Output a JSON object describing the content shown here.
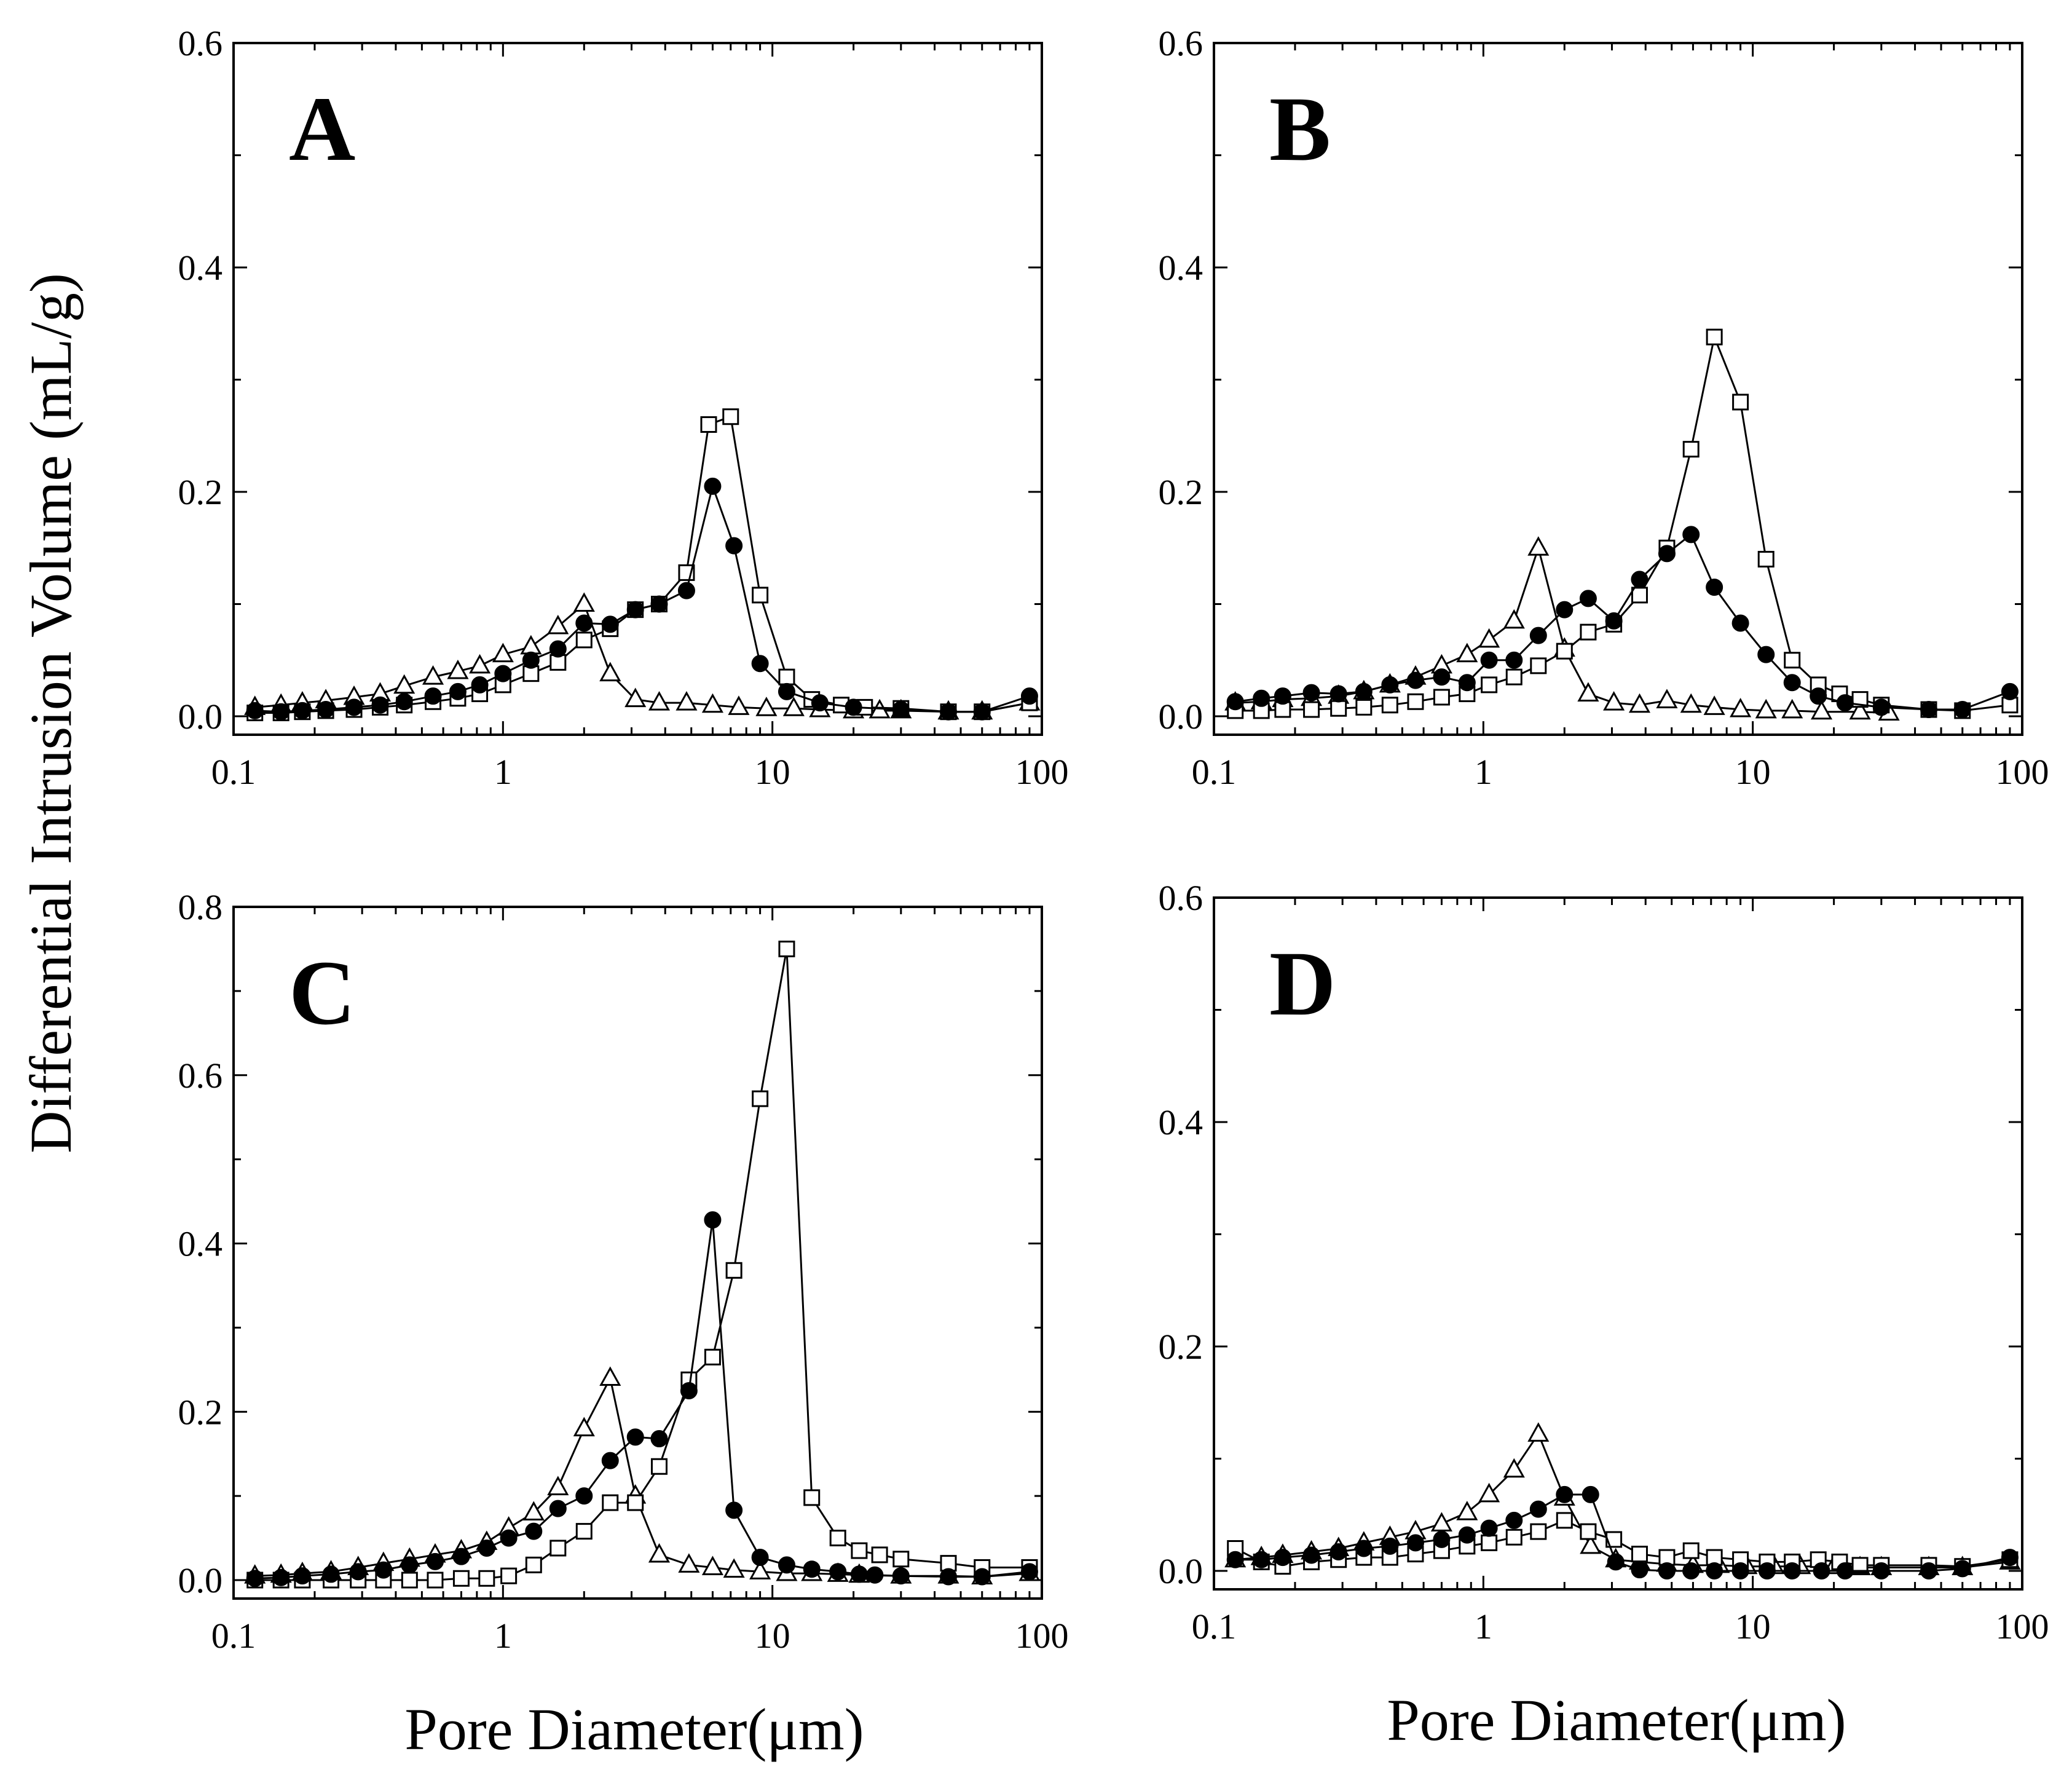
{
  "figure": {
    "ylabel": "Differential Intrusion Volume (mL/g)",
    "xlabel": "Pore Diameter(μm)"
  },
  "chart_data": [
    {
      "panel": "A",
      "type": "line",
      "xscale": "log",
      "xlim": [
        0.1,
        100
      ],
      "ylim": [
        0,
        0.6
      ],
      "xticks": [
        "0.1",
        "1",
        "10",
        "100"
      ],
      "yticks": [
        "0.0",
        "0.2",
        "0.4",
        "0.6"
      ],
      "series": [
        {
          "name": "filled circles",
          "marker": "circle-filled",
          "x": [
            0.12,
            0.15,
            0.18,
            0.22,
            0.28,
            0.35,
            0.43,
            0.55,
            0.68,
            0.82,
            1.0,
            1.27,
            1.6,
            2.0,
            2.5,
            3.1,
            3.8,
            4.8,
            6.0,
            7.2,
            9.0,
            11.3,
            15,
            20,
            30,
            45,
            60,
            90
          ],
          "y": [
            0.005,
            0.004,
            0.005,
            0.006,
            0.008,
            0.01,
            0.013,
            0.018,
            0.022,
            0.028,
            0.038,
            0.05,
            0.06,
            0.083,
            0.082,
            0.095,
            0.1,
            0.112,
            0.205,
            0.152,
            0.047,
            0.022,
            0.012,
            0.008,
            0.006,
            0.004,
            0.004,
            0.018
          ]
        },
        {
          "name": "open squares",
          "marker": "square-open",
          "x": [
            0.12,
            0.15,
            0.18,
            0.22,
            0.28,
            0.35,
            0.43,
            0.55,
            0.68,
            0.82,
            1.0,
            1.27,
            1.6,
            2.0,
            2.5,
            3.1,
            3.8,
            4.8,
            5.8,
            7.0,
            9.0,
            11.3,
            14,
            18,
            22,
            30,
            45,
            60,
            90
          ],
          "y": [
            0.003,
            0.003,
            0.004,
            0.005,
            0.006,
            0.008,
            0.01,
            0.013,
            0.016,
            0.02,
            0.028,
            0.038,
            0.048,
            0.068,
            0.078,
            0.095,
            0.1,
            0.128,
            0.26,
            0.267,
            0.108,
            0.035,
            0.015,
            0.01,
            0.008,
            0.007,
            0.004,
            0.004,
            0.012
          ]
        },
        {
          "name": "open triangles",
          "marker": "triangle-open",
          "x": [
            0.12,
            0.15,
            0.18,
            0.22,
            0.28,
            0.35,
            0.43,
            0.55,
            0.68,
            0.82,
            1.0,
            1.27,
            1.6,
            2.0,
            2.5,
            3.1,
            3.8,
            4.8,
            6.0,
            7.5,
            9.5,
            12,
            15,
            20,
            25,
            30,
            45,
            60,
            90
          ],
          "y": [
            0.008,
            0.01,
            0.012,
            0.014,
            0.017,
            0.02,
            0.027,
            0.035,
            0.04,
            0.045,
            0.055,
            0.062,
            0.08,
            0.1,
            0.038,
            0.015,
            0.012,
            0.012,
            0.01,
            0.008,
            0.007,
            0.007,
            0.006,
            0.005,
            0.005,
            0.005,
            0.004,
            0.004,
            0.012
          ]
        }
      ]
    },
    {
      "panel": "B",
      "type": "line",
      "xscale": "log",
      "xlim": [
        0.1,
        100
      ],
      "ylim": [
        0,
        0.6
      ],
      "xticks": [
        "0.1",
        "1",
        "10",
        "100"
      ],
      "yticks": [
        "0.0",
        "0.2",
        "0.4",
        "0.6"
      ],
      "series": [
        {
          "name": "filled circles",
          "marker": "circle-filled",
          "x": [
            0.12,
            0.15,
            0.18,
            0.23,
            0.29,
            0.36,
            0.45,
            0.56,
            0.7,
            0.87,
            1.05,
            1.3,
            1.6,
            2.0,
            2.45,
            3.05,
            3.8,
            4.8,
            5.9,
            7.2,
            9.0,
            11.2,
            14,
            17.5,
            22,
            30,
            45,
            60,
            90
          ],
          "y": [
            0.013,
            0.016,
            0.018,
            0.021,
            0.02,
            0.022,
            0.028,
            0.032,
            0.035,
            0.03,
            0.05,
            0.05,
            0.072,
            0.095,
            0.105,
            0.085,
            0.122,
            0.145,
            0.162,
            0.115,
            0.083,
            0.055,
            0.03,
            0.018,
            0.012,
            0.008,
            0.006,
            0.006,
            0.022
          ]
        },
        {
          "name": "open squares",
          "marker": "square-open",
          "x": [
            0.12,
            0.15,
            0.18,
            0.23,
            0.29,
            0.36,
            0.45,
            0.56,
            0.7,
            0.87,
            1.05,
            1.3,
            1.6,
            2.0,
            2.45,
            3.05,
            3.8,
            4.8,
            5.9,
            7.2,
            9.0,
            11.2,
            14,
            17.5,
            21,
            25,
            30,
            45,
            60,
            90
          ],
          "y": [
            0.005,
            0.005,
            0.006,
            0.006,
            0.007,
            0.008,
            0.01,
            0.013,
            0.017,
            0.02,
            0.028,
            0.035,
            0.045,
            0.058,
            0.075,
            0.082,
            0.108,
            0.15,
            0.238,
            0.338,
            0.28,
            0.14,
            0.05,
            0.028,
            0.02,
            0.015,
            0.01,
            0.006,
            0.005,
            0.01
          ]
        },
        {
          "name": "open triangles",
          "marker": "triangle-open",
          "x": [
            0.12,
            0.15,
            0.18,
            0.23,
            0.29,
            0.36,
            0.45,
            0.56,
            0.7,
            0.87,
            1.05,
            1.3,
            1.6,
            2.0,
            2.45,
            3.05,
            3.8,
            4.8,
            5.9,
            7.2,
            9.0,
            11.2,
            14,
            18,
            25,
            32
          ],
          "y": [
            0.012,
            0.013,
            0.015,
            0.016,
            0.018,
            0.022,
            0.028,
            0.035,
            0.045,
            0.055,
            0.068,
            0.085,
            0.15,
            0.06,
            0.02,
            0.012,
            0.01,
            0.014,
            0.01,
            0.008,
            0.006,
            0.005,
            0.005,
            0.004,
            0.004,
            0.003
          ]
        }
      ]
    },
    {
      "panel": "C",
      "type": "line",
      "xscale": "log",
      "xlim": [
        0.1,
        100
      ],
      "ylim": [
        0,
        0.8
      ],
      "xticks": [
        "0.1",
        "1",
        "10",
        "100"
      ],
      "yticks": [
        "0.0",
        "0.2",
        "0.4",
        "0.6",
        "0.8"
      ],
      "series": [
        {
          "name": "filled circles",
          "marker": "circle-filled",
          "x": [
            0.12,
            0.15,
            0.18,
            0.23,
            0.29,
            0.36,
            0.45,
            0.56,
            0.7,
            0.87,
            1.05,
            1.3,
            1.6,
            2.0,
            2.5,
            3.1,
            3.8,
            4.9,
            6.0,
            7.2,
            9.0,
            11.3,
            14,
            17.5,
            21,
            24,
            30,
            45,
            60,
            90
          ],
          "y": [
            0.002,
            0.003,
            0.005,
            0.007,
            0.01,
            0.012,
            0.018,
            0.022,
            0.028,
            0.038,
            0.05,
            0.058,
            0.085,
            0.1,
            0.142,
            0.17,
            0.168,
            0.225,
            0.428,
            0.083,
            0.027,
            0.018,
            0.013,
            0.01,
            0.007,
            0.006,
            0.005,
            0.004,
            0.004,
            0.01
          ]
        },
        {
          "name": "open squares",
          "marker": "square-open",
          "x": [
            0.12,
            0.15,
            0.18,
            0.23,
            0.29,
            0.36,
            0.45,
            0.56,
            0.7,
            0.87,
            1.05,
            1.3,
            1.6,
            2.0,
            2.5,
            3.1,
            3.8,
            4.9,
            6.0,
            7.2,
            9.0,
            11.3,
            14,
            17.5,
            21,
            25,
            30,
            45,
            60,
            90
          ],
          "y": [
            0.0,
            0.0,
            0.0,
            0.0,
            0.0,
            0.0,
            0.0,
            0.0,
            0.002,
            0.002,
            0.005,
            0.018,
            0.038,
            0.058,
            0.092,
            0.092,
            0.135,
            0.238,
            0.265,
            0.368,
            0.572,
            0.75,
            0.098,
            0.05,
            0.035,
            0.03,
            0.025,
            0.02,
            0.015,
            0.015
          ]
        },
        {
          "name": "open triangles",
          "marker": "triangle-open",
          "x": [
            0.12,
            0.15,
            0.18,
            0.23,
            0.29,
            0.36,
            0.45,
            0.56,
            0.7,
            0.87,
            1.05,
            1.3,
            1.6,
            2.0,
            2.5,
            3.1,
            3.8,
            4.9,
            6.0,
            7.2,
            9.0,
            11.3,
            14,
            17.5,
            21,
            30,
            45,
            60,
            90
          ],
          "y": [
            0.005,
            0.006,
            0.008,
            0.01,
            0.015,
            0.02,
            0.025,
            0.03,
            0.035,
            0.045,
            0.062,
            0.08,
            0.11,
            0.18,
            0.24,
            0.1,
            0.03,
            0.018,
            0.015,
            0.012,
            0.01,
            0.008,
            0.008,
            0.007,
            0.006,
            0.005,
            0.005,
            0.004,
            0.008
          ]
        }
      ]
    },
    {
      "panel": "D",
      "type": "line",
      "xscale": "log",
      "xlim": [
        0.1,
        100
      ],
      "ylim": [
        0,
        0.6
      ],
      "xticks": [
        "0.1",
        "1",
        "10",
        "100"
      ],
      "yticks": [
        "0.0",
        "0.2",
        "0.4",
        "0.6"
      ],
      "series": [
        {
          "name": "filled circles",
          "marker": "circle-filled",
          "x": [
            0.12,
            0.15,
            0.18,
            0.23,
            0.29,
            0.36,
            0.45,
            0.56,
            0.7,
            0.87,
            1.05,
            1.3,
            1.6,
            2.0,
            2.5,
            3.1,
            3.8,
            4.8,
            5.9,
            7.2,
            9.0,
            11.3,
            14,
            18,
            22,
            30,
            45,
            60,
            90
          ],
          "y": [
            0.01,
            0.01,
            0.012,
            0.014,
            0.017,
            0.02,
            0.022,
            0.025,
            0.028,
            0.032,
            0.038,
            0.045,
            0.055,
            0.068,
            0.068,
            0.008,
            0.001,
            0.0,
            0.0,
            0.0,
            0.0,
            0.0,
            0.0,
            0.0,
            0.0,
            0.0,
            0.0,
            0.002,
            0.012
          ]
        },
        {
          "name": "open squares",
          "marker": "square-open",
          "x": [
            0.12,
            0.15,
            0.18,
            0.23,
            0.29,
            0.36,
            0.45,
            0.56,
            0.7,
            0.87,
            1.05,
            1.3,
            1.6,
            2.0,
            2.45,
            3.05,
            3.8,
            4.8,
            5.9,
            7.2,
            9.0,
            11.3,
            14,
            17.5,
            21,
            25,
            30,
            45,
            60,
            90
          ],
          "y": [
            0.02,
            0.008,
            0.004,
            0.008,
            0.01,
            0.012,
            0.012,
            0.015,
            0.018,
            0.022,
            0.025,
            0.03,
            0.035,
            0.045,
            0.035,
            0.028,
            0.015,
            0.012,
            0.018,
            0.012,
            0.01,
            0.008,
            0.008,
            0.01,
            0.008,
            0.005,
            0.005,
            0.005,
            0.004,
            0.01
          ]
        },
        {
          "name": "open triangles",
          "marker": "triangle-open",
          "x": [
            0.12,
            0.15,
            0.18,
            0.23,
            0.29,
            0.36,
            0.45,
            0.56,
            0.7,
            0.87,
            1.05,
            1.3,
            1.6,
            2.0,
            2.5,
            3.1,
            3.8,
            4.8,
            6.0,
            7.5,
            9.5,
            12,
            15,
            20,
            25,
            30,
            45,
            60,
            90
          ],
          "y": [
            0.01,
            0.012,
            0.014,
            0.017,
            0.02,
            0.025,
            0.03,
            0.035,
            0.042,
            0.052,
            0.068,
            0.09,
            0.122,
            0.065,
            0.022,
            0.01,
            0.008,
            0.006,
            0.005,
            0.005,
            0.004,
            0.004,
            0.004,
            0.004,
            0.003,
            0.003,
            0.003,
            0.003,
            0.008
          ]
        }
      ]
    }
  ]
}
